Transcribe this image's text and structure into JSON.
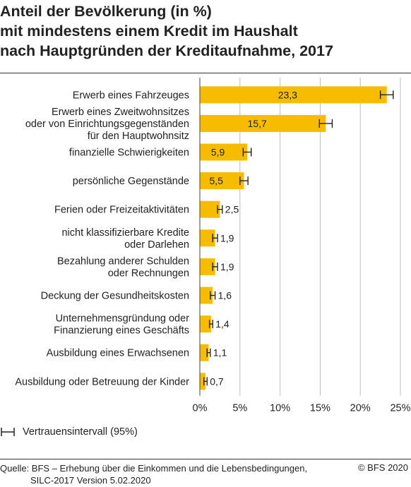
{
  "title_lines": [
    "Anteil der Bevölkerung (in %)",
    "mit mindestens einem Kredit im Haushalt",
    "nach Hauptgründen der Kreditaufnahme, 2017"
  ],
  "legend_label": "Vertrauensintervall (95%)",
  "source_lines": [
    "Quelle: BFS – Erhebung über die Einkommen und die Lebensbedingungen,",
    "SILC-2017 Version 5.02.2020"
  ],
  "copyright": "© BFS 2020",
  "colors": {
    "bar": "#f7bb00",
    "grid": "#bdbdbd",
    "axis": "#444444",
    "text": "#222222"
  },
  "chart_data": {
    "type": "bar",
    "orientation": "horizontal",
    "categories": [
      [
        "Erwerb eines Fahrzeuges"
      ],
      [
        "Erwerb eines Zweitwohnsitzes",
        "oder von Einrichtungsgegenständen",
        "für den Hauptwohnsitz"
      ],
      [
        "finanzielle Schwierigkeiten"
      ],
      [
        "persönliche Gegenstände"
      ],
      [
        "Ferien oder Freizeitaktivitäten"
      ],
      [
        "nicht klassifizierbare Kredite",
        "oder Darlehen"
      ],
      [
        "Bezahlung anderer Schulden",
        "oder Rechnungen"
      ],
      [
        "Deckung der Gesundheitskosten"
      ],
      [
        "Unternehmensgründung oder",
        "Finanzierung eines Geschäfts"
      ],
      [
        "Ausbildung eines Erwachsenen"
      ],
      [
        "Ausbildung oder Betreuung der Kinder"
      ]
    ],
    "values": [
      23.3,
      15.7,
      5.9,
      5.5,
      2.5,
      1.9,
      1.9,
      1.6,
      1.4,
      1.1,
      0.7
    ],
    "value_labels": [
      "23,3",
      "15,7",
      "5,9",
      "5,5",
      "2,5",
      "1,9",
      "1,9",
      "1,6",
      "1,4",
      "1,1",
      "0,7"
    ],
    "ci_low": [
      22.5,
      14.9,
      5.4,
      5.0,
      2.2,
      1.6,
      1.6,
      1.3,
      1.2,
      0.9,
      0.5
    ],
    "ci_high": [
      24.1,
      16.5,
      6.4,
      6.0,
      2.8,
      2.2,
      2.2,
      1.9,
      1.6,
      1.3,
      0.9
    ],
    "xlim": [
      0,
      25
    ],
    "xticks": [
      0,
      5,
      10,
      15,
      20,
      25
    ],
    "xtick_labels": [
      "0%",
      "5%",
      "10%",
      "15%",
      "20%",
      "25%"
    ],
    "grid": true
  }
}
